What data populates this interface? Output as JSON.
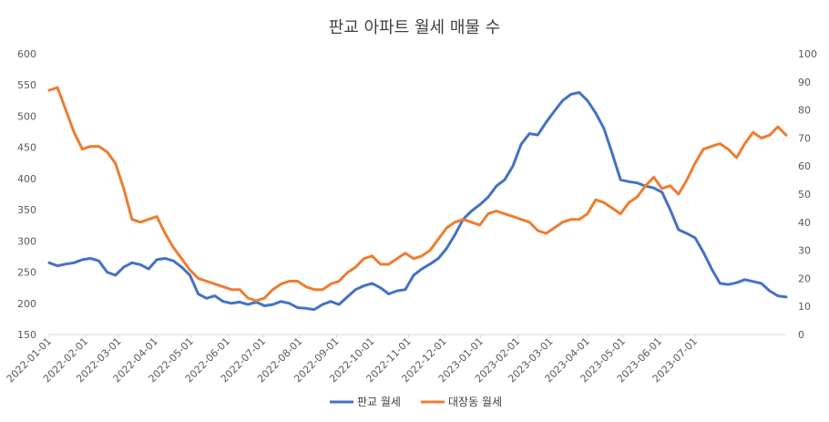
{
  "chart_data": {
    "type": "line",
    "title": "판교 아파트 월세 매물 수",
    "x_tick_labels": [
      "2022-01-01",
      "2022-02-01",
      "2022-03-01",
      "2022-04-01",
      "2022-05-01",
      "2022-06-01",
      "2022-07-01",
      "2022-08-01",
      "2022-09-01",
      "2022-10-01",
      "2022-11-01",
      "2022-12-01",
      "2023-01-01",
      "2023-02-01",
      "2023-03-01",
      "2023-04-01",
      "2023-05-01",
      "2023-06-01",
      "2023-07-01"
    ],
    "y_left": {
      "range": [
        150,
        600
      ],
      "ticks": [
        "150",
        "200",
        "250",
        "300",
        "350",
        "400",
        "450",
        "500",
        "550",
        "600"
      ]
    },
    "y_right": {
      "range": [
        0,
        100
      ],
      "ticks": [
        "0",
        "10",
        "20",
        "30",
        "40",
        "50",
        "60",
        "70",
        "80",
        "90",
        "100"
      ]
    },
    "grid": false,
    "legend": "bottom",
    "series": [
      {
        "name": "판교 월세",
        "axis": "left",
        "color": "#4472C4",
        "points": [
          [
            "2022-01-01",
            265
          ],
          [
            "2022-01-08",
            260
          ],
          [
            "2022-01-15",
            263
          ],
          [
            "2022-01-22",
            265
          ],
          [
            "2022-01-29",
            270
          ],
          [
            "2022-02-05",
            272
          ],
          [
            "2022-02-12",
            268
          ],
          [
            "2022-02-19",
            250
          ],
          [
            "2022-02-26",
            245
          ],
          [
            "2022-03-05",
            258
          ],
          [
            "2022-03-12",
            265
          ],
          [
            "2022-03-19",
            262
          ],
          [
            "2022-03-26",
            255
          ],
          [
            "2022-04-02",
            270
          ],
          [
            "2022-04-09",
            272
          ],
          [
            "2022-04-16",
            268
          ],
          [
            "2022-04-23",
            258
          ],
          [
            "2022-04-30",
            245
          ],
          [
            "2022-05-07",
            215
          ],
          [
            "2022-05-14",
            208
          ],
          [
            "2022-05-21",
            212
          ],
          [
            "2022-05-28",
            203
          ],
          [
            "2022-06-04",
            200
          ],
          [
            "2022-06-11",
            202
          ],
          [
            "2022-06-18",
            198
          ],
          [
            "2022-06-25",
            202
          ],
          [
            "2022-07-02",
            196
          ],
          [
            "2022-07-09",
            198
          ],
          [
            "2022-07-16",
            203
          ],
          [
            "2022-07-23",
            200
          ],
          [
            "2022-07-30",
            193
          ],
          [
            "2022-08-06",
            192
          ],
          [
            "2022-08-13",
            190
          ],
          [
            "2022-08-20",
            198
          ],
          [
            "2022-08-27",
            203
          ],
          [
            "2022-09-03",
            198
          ],
          [
            "2022-09-10",
            210
          ],
          [
            "2022-09-17",
            222
          ],
          [
            "2022-09-24",
            228
          ],
          [
            "2022-10-01",
            232
          ],
          [
            "2022-10-08",
            225
          ],
          [
            "2022-10-15",
            215
          ],
          [
            "2022-10-22",
            220
          ],
          [
            "2022-10-29",
            222
          ],
          [
            "2022-11-05",
            245
          ],
          [
            "2022-11-12",
            255
          ],
          [
            "2022-11-19",
            263
          ],
          [
            "2022-11-26",
            272
          ],
          [
            "2022-12-03",
            288
          ],
          [
            "2022-12-10",
            310
          ],
          [
            "2022-12-17",
            335
          ],
          [
            "2022-12-24",
            348
          ],
          [
            "2022-12-31",
            358
          ],
          [
            "2023-01-07",
            370
          ],
          [
            "2023-01-14",
            388
          ],
          [
            "2023-01-21",
            398
          ],
          [
            "2023-01-28",
            420
          ],
          [
            "2023-02-04",
            455
          ],
          [
            "2023-02-11",
            472
          ],
          [
            "2023-02-18",
            470
          ],
          [
            "2023-02-25",
            490
          ],
          [
            "2023-03-04",
            508
          ],
          [
            "2023-03-11",
            525
          ],
          [
            "2023-03-18",
            535
          ],
          [
            "2023-03-25",
            538
          ],
          [
            "2023-04-01",
            525
          ],
          [
            "2023-04-08",
            505
          ],
          [
            "2023-04-15",
            480
          ],
          [
            "2023-04-22",
            440
          ],
          [
            "2023-04-29",
            398
          ],
          [
            "2023-05-06",
            395
          ],
          [
            "2023-05-13",
            393
          ],
          [
            "2023-05-20",
            388
          ],
          [
            "2023-05-27",
            385
          ],
          [
            "2023-06-03",
            378
          ],
          [
            "2023-06-10",
            350
          ],
          [
            "2023-06-17",
            318
          ],
          [
            "2023-06-24",
            312
          ],
          [
            "2023-07-01",
            305
          ],
          [
            "2023-07-08",
            282
          ],
          [
            "2023-07-15",
            255
          ],
          [
            "2023-07-22",
            232
          ],
          [
            "2023-07-29",
            230
          ],
          [
            "2023-08-05",
            233
          ],
          [
            "2023-08-12",
            238
          ],
          [
            "2023-08-19",
            235
          ],
          [
            "2023-08-26",
            232
          ],
          [
            "2023-09-02",
            220
          ],
          [
            "2023-09-09",
            212
          ],
          [
            "2023-09-16",
            210
          ]
        ]
      },
      {
        "name": "대장동 월세",
        "axis": "right",
        "color": "#ED7D31",
        "points": [
          [
            "2022-01-01",
            87
          ],
          [
            "2022-01-08",
            88
          ],
          [
            "2022-01-15",
            80
          ],
          [
            "2022-01-22",
            72
          ],
          [
            "2022-01-29",
            66
          ],
          [
            "2022-02-05",
            67
          ],
          [
            "2022-02-12",
            67
          ],
          [
            "2022-02-19",
            65
          ],
          [
            "2022-02-26",
            61
          ],
          [
            "2022-03-05",
            52
          ],
          [
            "2022-03-12",
            41
          ],
          [
            "2022-03-19",
            40
          ],
          [
            "2022-03-26",
            41
          ],
          [
            "2022-04-02",
            42
          ],
          [
            "2022-04-09",
            36
          ],
          [
            "2022-04-16",
            31
          ],
          [
            "2022-04-23",
            27
          ],
          [
            "2022-04-30",
            23
          ],
          [
            "2022-05-07",
            20
          ],
          [
            "2022-05-14",
            19
          ],
          [
            "2022-05-21",
            18
          ],
          [
            "2022-05-28",
            17
          ],
          [
            "2022-06-04",
            16
          ],
          [
            "2022-06-11",
            16
          ],
          [
            "2022-06-18",
            13
          ],
          [
            "2022-06-25",
            12
          ],
          [
            "2022-07-02",
            13
          ],
          [
            "2022-07-09",
            16
          ],
          [
            "2022-07-16",
            18
          ],
          [
            "2022-07-23",
            19
          ],
          [
            "2022-07-30",
            19
          ],
          [
            "2022-08-06",
            17
          ],
          [
            "2022-08-13",
            16
          ],
          [
            "2022-08-20",
            16
          ],
          [
            "2022-08-27",
            18
          ],
          [
            "2022-09-03",
            19
          ],
          [
            "2022-09-10",
            22
          ],
          [
            "2022-09-17",
            24
          ],
          [
            "2022-09-24",
            27
          ],
          [
            "2022-10-01",
            28
          ],
          [
            "2022-10-08",
            25
          ],
          [
            "2022-10-15",
            25
          ],
          [
            "2022-10-22",
            27
          ],
          [
            "2022-10-29",
            29
          ],
          [
            "2022-11-05",
            27
          ],
          [
            "2022-11-12",
            28
          ],
          [
            "2022-11-19",
            30
          ],
          [
            "2022-11-26",
            34
          ],
          [
            "2022-12-03",
            38
          ],
          [
            "2022-12-10",
            40
          ],
          [
            "2022-12-17",
            41
          ],
          [
            "2022-12-24",
            40
          ],
          [
            "2022-12-31",
            39
          ],
          [
            "2023-01-07",
            43
          ],
          [
            "2023-01-14",
            44
          ],
          [
            "2023-01-21",
            43
          ],
          [
            "2023-01-28",
            42
          ],
          [
            "2023-02-04",
            41
          ],
          [
            "2023-02-11",
            40
          ],
          [
            "2023-02-18",
            37
          ],
          [
            "2023-02-25",
            36
          ],
          [
            "2023-03-04",
            38
          ],
          [
            "2023-03-11",
            40
          ],
          [
            "2023-03-18",
            41
          ],
          [
            "2023-03-25",
            41
          ],
          [
            "2023-04-01",
            43
          ],
          [
            "2023-04-08",
            48
          ],
          [
            "2023-04-15",
            47
          ],
          [
            "2023-04-22",
            45
          ],
          [
            "2023-04-29",
            43
          ],
          [
            "2023-05-06",
            47
          ],
          [
            "2023-05-13",
            49
          ],
          [
            "2023-05-20",
            53
          ],
          [
            "2023-05-27",
            56
          ],
          [
            "2023-06-03",
            52
          ],
          [
            "2023-06-10",
            53
          ],
          [
            "2023-06-17",
            50
          ],
          [
            "2023-06-24",
            55
          ],
          [
            "2023-07-01",
            61
          ],
          [
            "2023-07-08",
            66
          ],
          [
            "2023-07-15",
            67
          ],
          [
            "2023-07-22",
            68
          ],
          [
            "2023-07-29",
            66
          ],
          [
            "2023-08-05",
            63
          ],
          [
            "2023-08-12",
            68
          ],
          [
            "2023-08-19",
            72
          ],
          [
            "2023-08-26",
            70
          ],
          [
            "2023-09-02",
            71
          ],
          [
            "2023-09-09",
            74
          ],
          [
            "2023-09-16",
            71
          ]
        ]
      }
    ]
  }
}
